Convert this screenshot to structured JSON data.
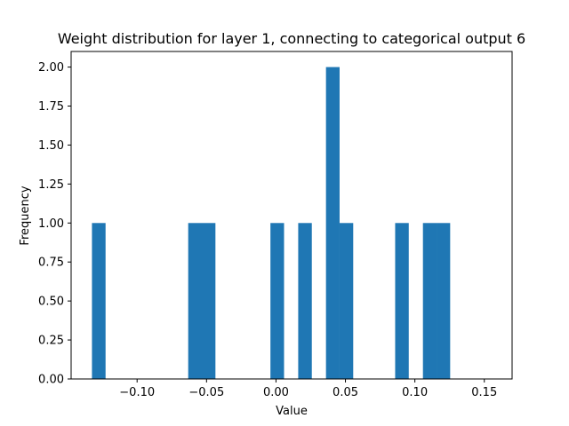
{
  "chart_data": {
    "type": "bar",
    "title": "Weight distribution for layer 1, connecting to categorical output 6",
    "xlabel": "Value",
    "ylabel": "Frequency",
    "xlim": [
      -0.1475,
      0.17
    ],
    "ylim": [
      0,
      2.1
    ],
    "xticks": [
      -0.1,
      -0.05,
      0.0,
      0.05,
      0.1,
      0.15
    ],
    "xtick_labels": [
      "−0.10",
      "−0.05",
      "0.00",
      "0.05",
      "0.10",
      "0.15"
    ],
    "yticks": [
      0.0,
      0.25,
      0.5,
      0.75,
      1.0,
      1.25,
      1.5,
      1.75,
      2.0
    ],
    "ytick_labels": [
      "0.00",
      "0.25",
      "0.50",
      "0.75",
      "1.00",
      "1.25",
      "1.50",
      "1.75",
      "2.00"
    ],
    "bin_width": 0.0098,
    "bins": [
      {
        "x0": -0.1325,
        "count": 1
      },
      {
        "x0": -0.0632,
        "count": 1
      },
      {
        "x0": -0.0534,
        "count": 1
      },
      {
        "x0": -0.004,
        "count": 1
      },
      {
        "x0": 0.016,
        "count": 1
      },
      {
        "x0": 0.036,
        "count": 2
      },
      {
        "x0": 0.0458,
        "count": 1
      },
      {
        "x0": 0.0858,
        "count": 1
      },
      {
        "x0": 0.1058,
        "count": 1
      },
      {
        "x0": 0.1156,
        "count": 1
      }
    ],
    "bar_color": "#1f77b4",
    "grid": false
  }
}
